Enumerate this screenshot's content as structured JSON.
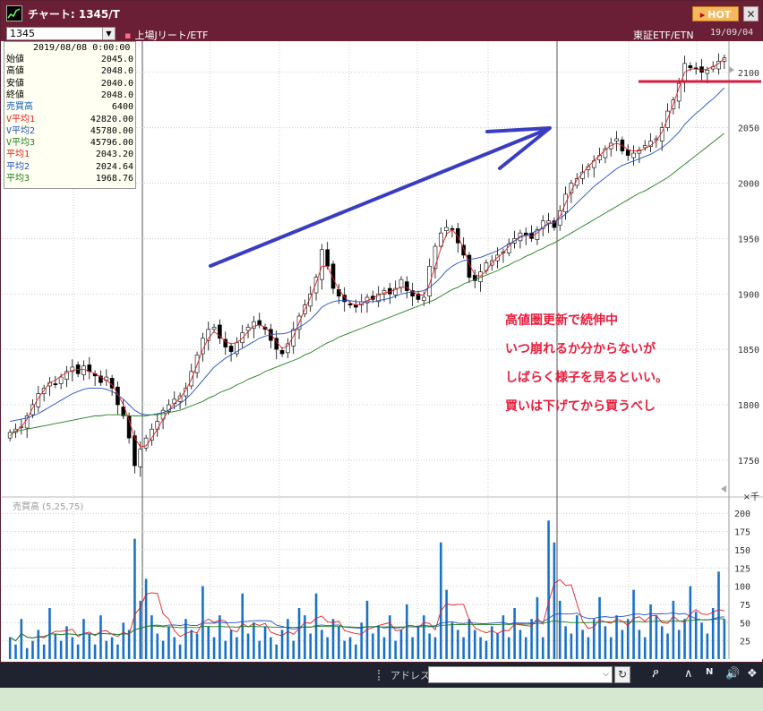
{
  "window": {
    "title": "チャート: 1345/T",
    "hot_label": "HOT",
    "close_glyph": "✕"
  },
  "toolbar": {
    "code_value": "1345",
    "market": "上場Jリート/ETF",
    "exchange": "東証ETF/ETN",
    "date": "19/09/04"
  },
  "info_box": {
    "date": "2019/08/08 0:00:00",
    "rows": [
      {
        "label": "始値",
        "value": "2045.0",
        "color": "#000000"
      },
      {
        "label": "高値",
        "value": "2048.0",
        "color": "#000000"
      },
      {
        "label": "安値",
        "value": "2040.0",
        "color": "#000000"
      },
      {
        "label": "終値",
        "value": "2048.0",
        "color": "#000000"
      },
      {
        "label": "売買高",
        "value": "6400",
        "color": "#1060c0"
      },
      {
        "label": "V平均1",
        "value": "42820.00",
        "color": "#e02020"
      },
      {
        "label": "V平均2",
        "value": "45780.00",
        "color": "#2050c0"
      },
      {
        "label": "V平均3",
        "value": "45796.00",
        "color": "#208020"
      },
      {
        "label": "平均1",
        "value": "2043.20",
        "color": "#e02020"
      },
      {
        "label": "平均2",
        "value": "2024.64",
        "color": "#2050c0"
      },
      {
        "label": "平均3",
        "value": "1968.76",
        "color": "#208020"
      }
    ]
  },
  "annotations": [
    "高値圏更新で続伸中",
    "いつ崩れるか分からないが",
    "しばらく様子を見るといい。",
    "買いは下げてから買うべし"
  ],
  "volume_panel": {
    "label": "売買高 (5,25,75)",
    "unit": "×千",
    "ticks": [
      "200",
      "175",
      "150",
      "125",
      "100",
      "75",
      "50",
      "25"
    ]
  },
  "chart_data": {
    "type": "candlestick",
    "price_axis": {
      "ticks": [
        1750,
        1800,
        1850,
        1900,
        1950,
        2000,
        2050,
        2100
      ],
      "ylim": [
        1720,
        2120
      ]
    },
    "volume_axis": {
      "ticks": [
        25,
        50,
        75,
        100,
        125,
        150,
        175,
        200
      ],
      "ylim": [
        0,
        215
      ]
    },
    "closes": [
      1775,
      1778,
      1780,
      1790,
      1800,
      1810,
      1815,
      1820,
      1818,
      1825,
      1830,
      1834,
      1828,
      1835,
      1830,
      1826,
      1820,
      1825,
      1815,
      1800,
      1790,
      1770,
      1745,
      1760,
      1770,
      1778,
      1785,
      1795,
      1800,
      1805,
      1808,
      1815,
      1830,
      1845,
      1860,
      1868,
      1870,
      1860,
      1852,
      1848,
      1856,
      1865,
      1870,
      1875,
      1872,
      1868,
      1858,
      1850,
      1846,
      1855,
      1868,
      1880,
      1890,
      1900,
      1915,
      1940,
      1925,
      1905,
      1898,
      1893,
      1890,
      1888,
      1893,
      1897,
      1895,
      1900,
      1903,
      1900,
      1905,
      1913,
      1903,
      1898,
      1895,
      1897,
      1925,
      1943,
      1955,
      1960,
      1958,
      1946,
      1935,
      1915,
      1912,
      1920,
      1928,
      1930,
      1935,
      1938,
      1945,
      1950,
      1955,
      1953,
      1950,
      1958,
      1966,
      1966,
      1960,
      1975,
      1990,
      2000,
      2004,
      2010,
      2015,
      2020,
      2025,
      2031,
      2036,
      2040,
      2029,
      2025,
      2027,
      2030,
      2034,
      2038,
      2040,
      2050,
      2065,
      2075,
      2090,
      2108,
      2104,
      2103,
      2100,
      2102,
      2105,
      2110,
      2113
    ],
    "ma1": [
      1772,
      1776,
      1780,
      1787,
      1797,
      1806,
      1813,
      1820,
      1822,
      1826,
      1829,
      1831,
      1832,
      1832,
      1830,
      1828,
      1825,
      1822,
      1818,
      1810,
      1800,
      1786,
      1770,
      1762,
      1763,
      1770,
      1778,
      1787,
      1795,
      1801,
      1806,
      1813,
      1823,
      1836,
      1850,
      1860,
      1866,
      1862,
      1857,
      1855,
      1856,
      1860,
      1866,
      1871,
      1872,
      1870,
      1864,
      1857,
      1851,
      1853,
      1862,
      1874,
      1886,
      1897,
      1910,
      1925,
      1925,
      1914,
      1904,
      1897,
      1892,
      1890,
      1891,
      1894,
      1896,
      1899,
      1901,
      1902,
      1904,
      1906,
      1906,
      1902,
      1899,
      1899,
      1909,
      1925,
      1941,
      1954,
      1958,
      1952,
      1941,
      1927,
      1917,
      1916,
      1921,
      1928,
      1933,
      1937,
      1943,
      1948,
      1952,
      1953,
      1952,
      1955,
      1960,
      1964,
      1964,
      1970,
      1982,
      1993,
      2003,
      2009,
      2015,
      2020,
      2025,
      2030,
      2034,
      2036,
      2034,
      2030,
      2029,
      2029,
      2031,
      2034,
      2038,
      2046,
      2058,
      2071,
      2086,
      2100,
      2103,
      2103,
      2102,
      2103,
      2105,
      2108,
      2112
    ],
    "ma2": [
      1785,
      1786,
      1787,
      1788,
      1790,
      1792,
      1795,
      1798,
      1801,
      1804,
      1807,
      1810,
      1812,
      1814,
      1815,
      1815,
      1815,
      1814,
      1812,
      1809,
      1805,
      1800,
      1795,
      1792,
      1791,
      1791,
      1792,
      1793,
      1795,
      1798,
      1801,
      1805,
      1810,
      1816,
      1822,
      1828,
      1834,
      1838,
      1842,
      1845,
      1848,
      1851,
      1854,
      1857,
      1860,
      1862,
      1863,
      1864,
      1864,
      1865,
      1867,
      1870,
      1873,
      1877,
      1882,
      1888,
      1891,
      1893,
      1894,
      1894,
      1894,
      1893,
      1893,
      1893,
      1893,
      1894,
      1895,
      1896,
      1898,
      1900,
      1901,
      1902,
      1902,
      1903,
      1906,
      1910,
      1915,
      1921,
      1925,
      1928,
      1930,
      1931,
      1932,
      1933,
      1935,
      1937,
      1939,
      1942,
      1945,
      1948,
      1951,
      1953,
      1955,
      1957,
      1960,
      1963,
      1965,
      1968,
      1972,
      1977,
      1982,
      1987,
      1992,
      1997,
      2001,
      2005,
      2009,
      2013,
      2016,
      2018,
      2020,
      2022,
      2024,
      2026,
      2029,
      2032,
      2036,
      2041,
      2046,
      2053,
      2058,
      2063,
      2067,
      2072,
      2076,
      2081,
      2086
    ],
    "ma3": [
      1775,
      1776,
      1777,
      1778,
      1779,
      1780,
      1781,
      1782,
      1783,
      1784,
      1785,
      1786,
      1787,
      1788,
      1789,
      1790,
      1790,
      1791,
      1791,
      1791,
      1791,
      1790,
      1790,
      1790,
      1790,
      1791,
      1791,
      1792,
      1793,
      1794,
      1795,
      1797,
      1799,
      1801,
      1803,
      1806,
      1808,
      1811,
      1813,
      1815,
      1818,
      1820,
      1823,
      1825,
      1827,
      1830,
      1832,
      1834,
      1836,
      1838,
      1840,
      1842,
      1845,
      1847,
      1850,
      1853,
      1856,
      1858,
      1861,
      1863,
      1865,
      1867,
      1869,
      1871,
      1873,
      1875,
      1877,
      1879,
      1881,
      1883,
      1885,
      1887,
      1889,
      1891,
      1893,
      1895,
      1898,
      1901,
      1904,
      1906,
      1909,
      1911,
      1913,
      1915,
      1917,
      1919,
      1921,
      1924,
      1926,
      1929,
      1931,
      1934,
      1936,
      1939,
      1941,
      1944,
      1946,
      1949,
      1952,
      1955,
      1958,
      1961,
      1964,
      1967,
      1970,
      1973,
      1976,
      1979,
      1982,
      1985,
      1988,
      1991,
      1993,
      1996,
      1999,
      2002,
      2005,
      2009,
      2013,
      2017,
      2021,
      2025,
      2029,
      2033,
      2037,
      2041,
      2045
    ],
    "volumes": [
      30,
      20,
      55,
      15,
      25,
      40,
      20,
      70,
      35,
      25,
      45,
      30,
      20,
      55,
      35,
      20,
      60,
      25,
      30,
      20,
      50,
      40,
      165,
      80,
      110,
      60,
      35,
      25,
      45,
      30,
      20,
      55,
      40,
      35,
      100,
      45,
      30,
      60,
      25,
      40,
      30,
      90,
      35,
      50,
      25,
      45,
      30,
      20,
      40,
      55,
      25,
      70,
      60,
      35,
      90,
      40,
      30,
      55,
      45,
      25,
      30,
      20,
      50,
      80,
      35,
      45,
      30,
      60,
      25,
      40,
      75,
      30,
      45,
      60,
      35,
      30,
      160,
      95,
      50,
      40,
      30,
      55,
      40,
      30,
      25,
      45,
      35,
      60,
      30,
      70,
      40,
      30,
      55,
      85,
      30,
      190,
      160,
      80,
      45,
      35,
      60,
      40,
      30,
      55,
      85,
      45,
      30,
      60,
      40,
      55,
      95,
      40,
      30,
      75,
      60,
      45,
      35,
      80,
      40,
      55,
      100,
      65,
      50,
      35,
      70,
      120,
      55
    ]
  }
}
